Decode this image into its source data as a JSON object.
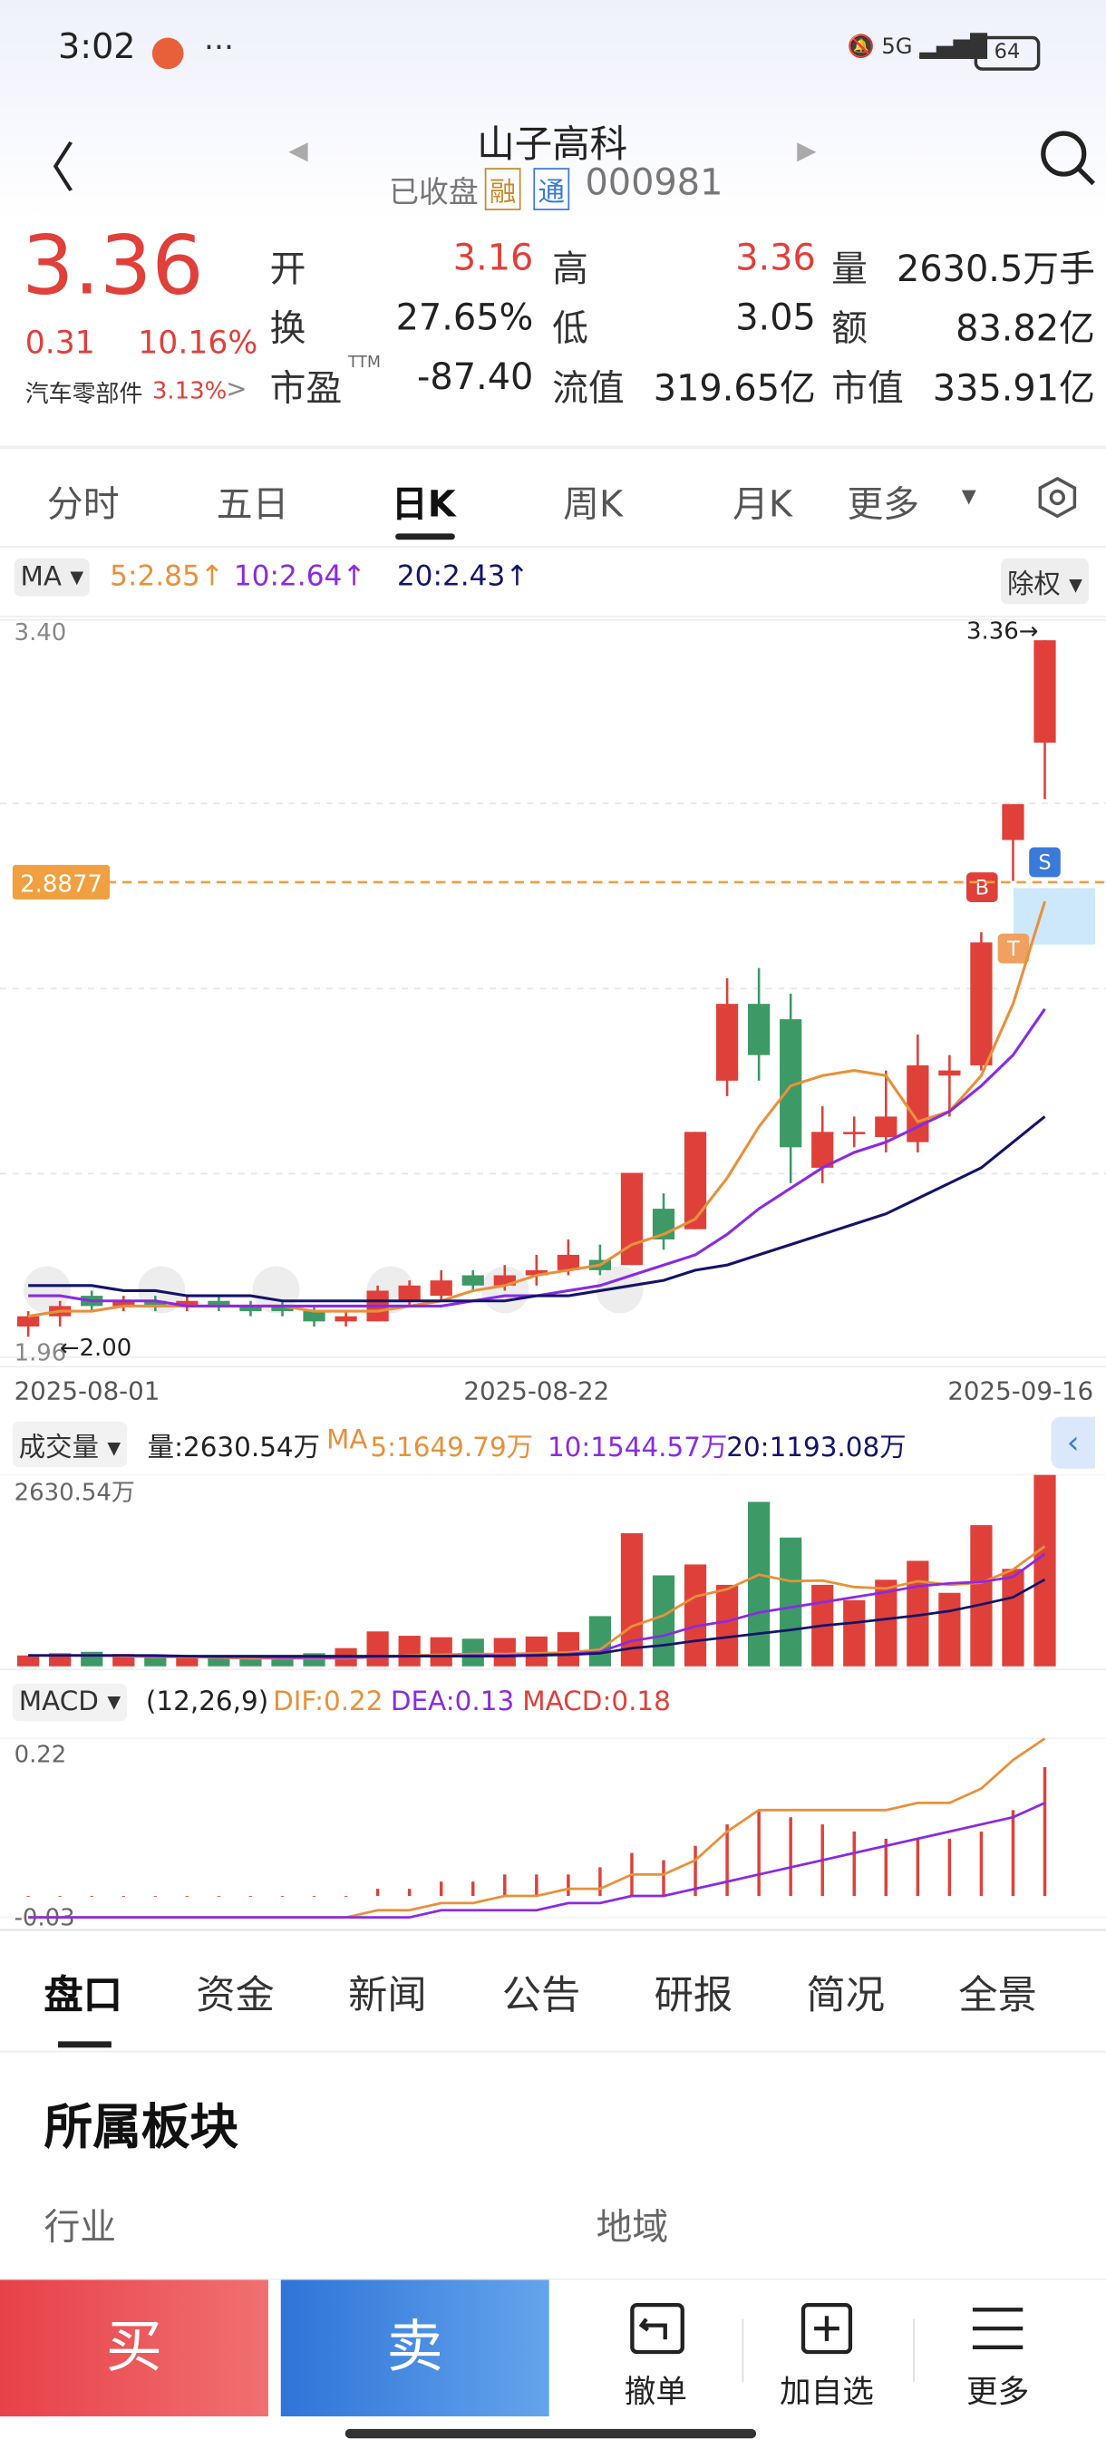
{
  "status": {
    "time": "3:02",
    "battery": "64"
  },
  "header": {
    "title": "山子高科",
    "state": "已收盘",
    "badge1": "融",
    "badge2": "通",
    "code": "000981"
  },
  "quote": {
    "price": "3.36",
    "change": "0.31",
    "pct": "10.16%",
    "sector": "汽车零部件",
    "sector_pct": "3.13%",
    "f_open": "开",
    "v_open": "3.16",
    "f_high": "高",
    "v_high": "3.36",
    "f_vol": "量",
    "v_vol": "2630.5万手",
    "f_turn": "换",
    "v_turn": "27.65%",
    "f_low": "低",
    "v_low": "3.05",
    "f_amt": "额",
    "v_amt": "83.82亿",
    "f_pe": "市盈",
    "f_pe_sup": "TTM",
    "v_pe": "-87.40",
    "f_float": "流值",
    "v_float": "319.65亿",
    "f_cap": "市值",
    "v_cap": "335.91亿"
  },
  "tabs": [
    "分时",
    "五日",
    "日K",
    "周K",
    "月K",
    "更多"
  ],
  "ma_bar": {
    "label": "MA",
    "legend": [
      "5:2.85↑",
      "10:2.64↑",
      "20:2.43↑"
    ],
    "right": "除权"
  },
  "chart_data": [
    {
      "type": "candlestick",
      "categories": [
        "2025-08-01",
        null,
        null,
        null,
        null,
        null,
        null,
        null,
        null,
        null,
        null,
        null,
        null,
        null,
        null,
        null,
        "2025-08-22",
        null,
        null,
        null,
        null,
        null,
        null,
        null,
        null,
        null,
        null,
        null,
        null,
        null,
        null,
        null,
        "2025-09-16"
      ],
      "open": [
        2.02,
        2.04,
        2.08,
        2.06,
        2.07,
        2.06,
        2.07,
        2.06,
        2.06,
        2.05,
        2.03,
        2.03,
        2.07,
        2.08,
        2.12,
        2.1,
        2.12,
        2.13,
        2.15,
        2.14,
        2.25,
        2.21,
        2.5,
        2.65,
        2.62,
        2.33,
        2.4,
        2.39,
        2.38,
        2.51,
        2.53,
        2.97,
        3.16
      ],
      "high": [
        2.05,
        2.07,
        2.09,
        2.08,
        2.08,
        2.08,
        2.08,
        2.07,
        2.07,
        2.06,
        2.05,
        2.1,
        2.11,
        2.13,
        2.13,
        2.14,
        2.16,
        2.19,
        2.18,
        2.32,
        2.28,
        2.4,
        2.7,
        2.72,
        2.67,
        2.45,
        2.43,
        2.52,
        2.59,
        2.55,
        2.79,
        3.04,
        3.36
      ],
      "low": [
        2.0,
        2.02,
        2.05,
        2.05,
        2.05,
        2.05,
        2.05,
        2.04,
        2.04,
        2.02,
        2.02,
        2.03,
        2.06,
        2.07,
        2.09,
        2.09,
        2.1,
        2.12,
        2.12,
        2.14,
        2.17,
        2.21,
        2.47,
        2.5,
        2.3,
        2.3,
        2.37,
        2.36,
        2.36,
        2.43,
        2.52,
        2.89,
        3.05
      ],
      "close": [
        2.04,
        2.06,
        2.06,
        2.07,
        2.06,
        2.07,
        2.06,
        2.05,
        2.05,
        2.03,
        2.04,
        2.09,
        2.1,
        2.11,
        2.1,
        2.12,
        2.13,
        2.16,
        2.13,
        2.32,
        2.19,
        2.4,
        2.65,
        2.55,
        2.37,
        2.4,
        2.4,
        2.43,
        2.53,
        2.52,
        2.77,
        3.04,
        3.36
      ],
      "up_color": "#e0403a",
      "down_color": "#3d9a66",
      "series": [
        {
          "color": "#e8913a",
          "values": [
            2.04,
            2.05,
            2.05,
            2.06,
            2.06,
            2.06,
            2.06,
            2.06,
            2.06,
            2.05,
            2.05,
            2.05,
            2.06,
            2.07,
            2.09,
            2.1,
            2.12,
            2.13,
            2.14,
            2.18,
            2.2,
            2.23,
            2.31,
            2.41,
            2.49,
            2.51,
            2.52,
            2.51,
            2.42,
            2.44,
            2.51,
            2.65,
            2.85
          ]
        },
        {
          "color": "#8a2be2",
          "values": [
            2.08,
            2.08,
            2.07,
            2.07,
            2.07,
            2.06,
            2.06,
            2.06,
            2.06,
            2.06,
            2.06,
            2.06,
            2.06,
            2.06,
            2.07,
            2.08,
            2.08,
            2.09,
            2.1,
            2.12,
            2.14,
            2.16,
            2.2,
            2.25,
            2.29,
            2.33,
            2.36,
            2.38,
            2.41,
            2.44,
            2.49,
            2.55,
            2.64
          ]
        },
        {
          "color": "#14146b",
          "values": [
            2.1,
            2.1,
            2.1,
            2.09,
            2.09,
            2.08,
            2.08,
            2.08,
            2.07,
            2.07,
            2.07,
            2.07,
            2.07,
            2.07,
            2.07,
            2.07,
            2.08,
            2.08,
            2.09,
            2.1,
            2.11,
            2.13,
            2.14,
            2.16,
            2.18,
            2.2,
            2.22,
            2.24,
            2.27,
            2.3,
            2.33,
            2.38,
            2.43
          ]
        }
      ],
      "ylim": [
        1.96,
        3.4
      ],
      "yticks": [
        {
          "value": 3.4,
          "label": "3.40"
        },
        {
          "value": 1.96,
          "label": "1.96"
        }
      ],
      "price_line": {
        "value": 2.8877,
        "label": "2.8877"
      },
      "high_label": "3.36→",
      "low_label": "←2.00"
    },
    {
      "type": "bar",
      "label": "成交量",
      "summary": "量:2630.54万",
      "ma_label": "MA",
      "legend": [
        "5:1649.79万",
        "10:1544.57万",
        "20:1193.08万"
      ],
      "values": [
        150,
        180,
        200,
        170,
        150,
        140,
        130,
        120,
        130,
        180,
        250,
        480,
        420,
        400,
        380,
        390,
        410,
        470,
        690,
        1830,
        1250,
        1400,
        1120,
        2260,
        1770,
        1120,
        910,
        1190,
        1450,
        1010,
        1940,
        1340,
        2630.54
      ],
      "series": [
        {
          "color": "#e8913a",
          "values": [
            150,
            150,
            150,
            140,
            130,
            130,
            120,
            110,
            110,
            110,
            110,
            130,
            150,
            160,
            170,
            170,
            180,
            190,
            230,
            550,
            700,
            960,
            1060,
            1260,
            1170,
            1180,
            1090,
            1070,
            1170,
            1120,
            1150,
            1330,
            1649.79
          ]
        },
        {
          "color": "#8a2be2",
          "values": [
            150,
            150,
            150,
            150,
            140,
            140,
            130,
            130,
            120,
            120,
            120,
            130,
            140,
            140,
            150,
            150,
            160,
            170,
            200,
            350,
            420,
            550,
            620,
            740,
            810,
            880,
            950,
            1020,
            1100,
            1140,
            1160,
            1230,
            1544.57
          ]
        },
        {
          "color": "#14146b",
          "values": [
            150,
            150,
            150,
            150,
            150,
            140,
            140,
            140,
            140,
            140,
            140,
            140,
            140,
            140,
            140,
            140,
            150,
            160,
            180,
            250,
            290,
            350,
            400,
            450,
            500,
            560,
            600,
            650,
            700,
            760,
            850,
            950,
            1193.08
          ]
        }
      ],
      "ylim": [
        0,
        2630.54
      ],
      "yticks": [
        {
          "value": 2630.54,
          "label": "2630.54万"
        }
      ]
    },
    {
      "type": "macd",
      "label": "MACD",
      "params": "(12,26,9)",
      "legend": [
        "DIF:0.22",
        "DEA:0.13",
        "MACD:0.18"
      ],
      "dif": [
        -0.03,
        -0.03,
        -0.03,
        -0.03,
        -0.03,
        -0.03,
        -0.03,
        -0.03,
        -0.03,
        -0.03,
        -0.03,
        -0.02,
        -0.02,
        -0.01,
        -0.01,
        0,
        0,
        0.01,
        0.01,
        0.03,
        0.03,
        0.05,
        0.09,
        0.12,
        0.12,
        0.12,
        0.12,
        0.12,
        0.13,
        0.13,
        0.15,
        0.19,
        0.22
      ],
      "dea": [
        -0.03,
        -0.03,
        -0.03,
        -0.03,
        -0.03,
        -0.03,
        -0.03,
        -0.03,
        -0.03,
        -0.03,
        -0.03,
        -0.03,
        -0.03,
        -0.02,
        -0.02,
        -0.02,
        -0.02,
        -0.01,
        -0.01,
        0,
        0,
        0.01,
        0.02,
        0.03,
        0.04,
        0.05,
        0.06,
        0.07,
        0.08,
        0.09,
        0.1,
        0.11,
        0.13
      ],
      "macd": [
        0,
        0,
        0,
        0,
        0,
        0,
        0,
        0,
        0,
        0,
        0,
        0.01,
        0.01,
        0.02,
        0.02,
        0.03,
        0.03,
        0.03,
        0.04,
        0.06,
        0.05,
        0.07,
        0.1,
        0.12,
        0.11,
        0.1,
        0.09,
        0.08,
        0.08,
        0.08,
        0.09,
        0.12,
        0.18
      ],
      "dif_color": "#e8913a",
      "dea_color": "#8a2be2",
      "bar_color": "#e0403a",
      "ylim": [
        -0.03,
        0.22
      ],
      "yticks": [
        0.22,
        -0.03
      ]
    }
  ],
  "detail_tabs": [
    "盘口",
    "资金",
    "新闻",
    "公告",
    "研报",
    "简况",
    "全景"
  ],
  "section": {
    "title": "所属板块",
    "left": "行业",
    "right": "地域"
  },
  "actions": {
    "buy": "买",
    "sell": "卖",
    "cancel": "撤单",
    "watch": "加自选",
    "more": "更多"
  }
}
